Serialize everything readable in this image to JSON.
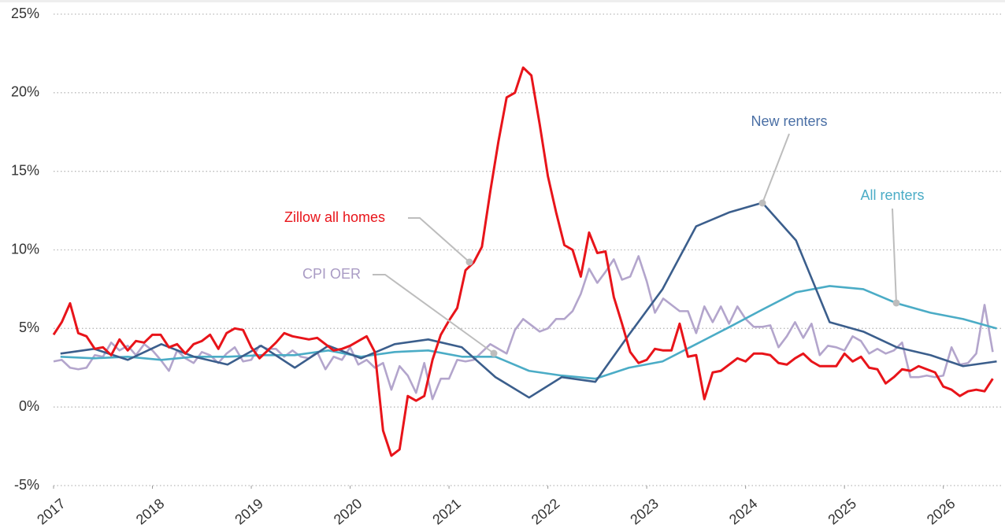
{
  "chart_data": {
    "type": "line",
    "x": [
      2017,
      2017.083,
      2017.167,
      2017.25,
      2017.333,
      2017.417,
      2017.5,
      2017.583,
      2017.667,
      2017.75,
      2017.833,
      2017.917,
      2018,
      2018.083,
      2018.167,
      2018.25,
      2018.333,
      2018.417,
      2018.5,
      2018.583,
      2018.667,
      2018.75,
      2018.833,
      2018.917,
      2019,
      2019.083,
      2019.167,
      2019.25,
      2019.333,
      2019.417,
      2019.5,
      2019.583,
      2019.667,
      2019.75,
      2019.833,
      2019.917,
      2020,
      2020.083,
      2020.167,
      2020.25,
      2020.333,
      2020.417,
      2020.5,
      2020.583,
      2020.667,
      2020.75,
      2020.833,
      2020.917,
      2021,
      2021.083,
      2021.167,
      2021.25,
      2021.333,
      2021.417,
      2021.5,
      2021.583,
      2021.667,
      2021.75,
      2021.833,
      2021.917,
      2022,
      2022.083,
      2022.167,
      2022.25,
      2022.333,
      2022.417,
      2022.5,
      2022.583,
      2022.667,
      2022.75,
      2022.833,
      2022.917,
      2023,
      2023.083,
      2023.167,
      2023.25,
      2023.333,
      2023.417,
      2023.5,
      2023.583,
      2023.667,
      2023.75,
      2023.833,
      2023.917,
      2024,
      2024.083,
      2024.167,
      2024.25,
      2024.333,
      2024.417,
      2024.5,
      2024.583,
      2024.667,
      2024.75,
      2024.833,
      2024.917,
      2025,
      2025.083,
      2025.167,
      2025.25,
      2025.333,
      2025.417,
      2025.5,
      2025.583,
      2025.667,
      2025.75,
      2025.833,
      2025.917,
      2026,
      2026.083,
      2026.167,
      2026.25,
      2026.333,
      2026.417,
      2026.5
    ],
    "series": [
      {
        "name": "Zillow all homes",
        "color": "#e8141a",
        "values": [
          4.6,
          5.4,
          6.6,
          4.7,
          4.5,
          3.7,
          3.8,
          3.3,
          4.3,
          3.6,
          4.2,
          4.1,
          4.6,
          4.6,
          3.8,
          4.0,
          3.4,
          4.0,
          4.2,
          4.6,
          3.7,
          4.7,
          5.0,
          4.9,
          3.8,
          3.1,
          3.6,
          4.1,
          4.7,
          4.5,
          4.4,
          4.3,
          4.4,
          4.0,
          3.6,
          3.7,
          3.9,
          4.2,
          4.5,
          3.5,
          -1.5,
          -3.1,
          -2.7,
          0.7,
          0.4,
          0.7,
          3.0,
          4.6,
          5.5,
          6.3,
          8.7,
          9.2,
          10.2,
          13.7,
          16.9,
          19.7,
          20.0,
          21.6,
          21.1,
          18.0,
          14.7,
          12.4,
          10.3,
          10.0,
          8.3,
          11.1,
          9.8,
          9.9,
          7.0,
          5.3,
          3.5,
          2.8,
          3.0,
          3.7,
          3.6,
          3.6,
          5.3,
          3.2,
          3.3,
          0.5,
          2.2,
          2.3,
          2.7,
          3.1,
          2.9,
          3.4,
          3.4,
          3.3,
          2.8,
          2.7,
          3.1,
          3.4,
          2.9,
          2.6,
          2.6,
          2.6,
          3.4,
          2.9,
          3.2,
          2.5,
          2.4,
          1.5,
          1.9,
          2.4,
          2.3,
          2.6,
          2.4,
          2.2,
          1.3,
          1.1,
          0.7,
          1.0,
          1.1,
          1.0,
          1.8
        ]
      },
      {
        "name": "CPI OER",
        "color": "#b3a5cc",
        "values": [
          2.9,
          3.0,
          2.5,
          2.4,
          2.5,
          3.3,
          3.2,
          4.1,
          3.6,
          3.9,
          3.3,
          4.0,
          3.6,
          3.0,
          2.3,
          3.6,
          3.1,
          2.8,
          3.5,
          3.3,
          2.8,
          3.4,
          3.8,
          2.9,
          3.0,
          3.9,
          3.7,
          3.7,
          3.2,
          3.6,
          3.2,
          3.1,
          3.5,
          2.4,
          3.2,
          3.0,
          3.8,
          2.7,
          3.0,
          2.5,
          2.8,
          1.1,
          2.6,
          2.0,
          0.9,
          2.8,
          0.5,
          1.8,
          1.8,
          3.0,
          2.9,
          3.0,
          3.5,
          4.0,
          3.7,
          3.4,
          4.9,
          5.6,
          5.2,
          4.8,
          5.0,
          5.6,
          5.6,
          6.1,
          7.2,
          8.8,
          7.9,
          8.6,
          9.4,
          8.1,
          8.3,
          9.6,
          8.0,
          6.0,
          6.9,
          6.5,
          6.1,
          6.1,
          4.7,
          6.4,
          5.4,
          6.4,
          5.3,
          6.4,
          5.6,
          5.1,
          5.1,
          5.2,
          3.8,
          4.5,
          5.4,
          4.4,
          5.3,
          3.3,
          3.9,
          3.8,
          3.6,
          4.5,
          4.2,
          3.4,
          3.7,
          3.4,
          3.6,
          4.1,
          1.9,
          1.9,
          2.0,
          1.9,
          2.0,
          3.8,
          2.7,
          2.8,
          3.4,
          6.5,
          3.5
        ]
      },
      {
        "name": "New renters",
        "color": "#3b5e8c",
        "x": [
          2017.07,
          2017.41,
          2017.75,
          2018.09,
          2018.42,
          2018.76,
          2019.1,
          2019.44,
          2019.78,
          2020.11,
          2020.45,
          2020.79,
          2021.13,
          2021.47,
          2021.81,
          2022.14,
          2022.48,
          2022.82,
          2023.16,
          2023.5,
          2023.84,
          2024.17,
          2024.51,
          2024.85,
          2025.19,
          2025.53,
          2025.87,
          2026.2,
          2026.54
        ],
        "values": [
          3.4,
          3.7,
          3.0,
          4.0,
          3.2,
          2.7,
          3.9,
          2.5,
          3.9,
          3.1,
          4.0,
          4.3,
          3.8,
          1.9,
          0.6,
          1.9,
          1.6,
          4.6,
          7.5,
          11.5,
          12.4,
          13.0,
          10.6,
          5.4,
          4.8,
          3.8,
          3.3,
          2.6,
          2.9
        ]
      },
      {
        "name": "All renters",
        "color": "#4bacc6",
        "x": [
          2017.07,
          2017.41,
          2017.75,
          2018.09,
          2018.42,
          2018.76,
          2019.1,
          2019.44,
          2019.78,
          2020.11,
          2020.45,
          2020.79,
          2021.13,
          2021.47,
          2021.81,
          2022.14,
          2022.48,
          2022.82,
          2023.16,
          2023.5,
          2023.84,
          2024.17,
          2024.51,
          2024.85,
          2025.19,
          2025.53,
          2025.87,
          2026.2,
          2026.54
        ],
        "values": [
          3.2,
          3.1,
          3.2,
          3.0,
          3.2,
          3.2,
          3.3,
          3.3,
          3.6,
          3.2,
          3.5,
          3.6,
          3.2,
          3.2,
          2.3,
          2.0,
          1.8,
          2.5,
          2.9,
          4.0,
          5.1,
          6.2,
          7.3,
          7.7,
          7.5,
          6.6,
          6.0,
          5.6,
          5.0
        ]
      }
    ],
    "xlim": [
      2017,
      2026.6
    ],
    "xticks": [
      2017,
      2018,
      2019,
      2020,
      2021,
      2022,
      2023,
      2024,
      2025,
      2026
    ],
    "ylim": [
      -5,
      25
    ],
    "yticks": [
      {
        "value": -5,
        "label": "-5%"
      },
      {
        "value": 0,
        "label": "0%"
      },
      {
        "value": 5,
        "label": "5%"
      },
      {
        "value": 10,
        "label": "10%"
      },
      {
        "value": 15,
        "label": "15%"
      },
      {
        "value": 20,
        "label": "20%"
      },
      {
        "value": 25,
        "label": "25%"
      }
    ],
    "grid": true
  }
}
